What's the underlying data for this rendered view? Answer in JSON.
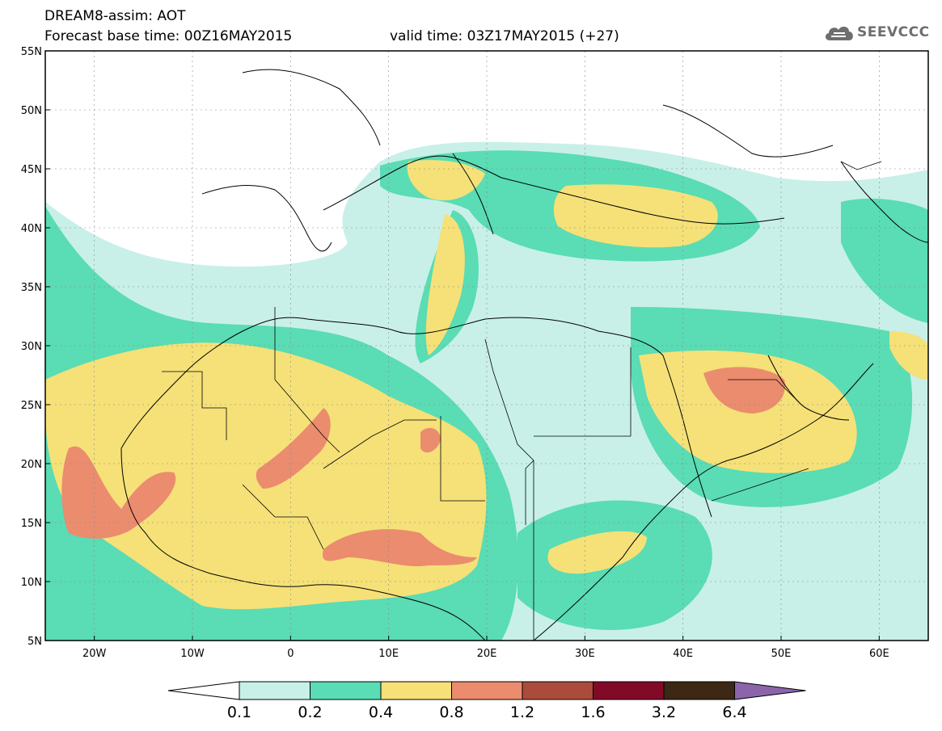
{
  "header": {
    "title": "DREAM8-assim: AOT",
    "base_time": "Forecast base time: 00Z16MAY2015",
    "valid_time": "valid time: 03Z17MAY2015 (+27)"
  },
  "logo": {
    "text": "SEEVCCC",
    "icon": "cloud-icon"
  },
  "map": {
    "lat_labels": [
      "55N",
      "50N",
      "45N",
      "40N",
      "35N",
      "30N",
      "25N",
      "20N",
      "15N",
      "10N",
      "5N"
    ],
    "lon_labels": [
      "20W",
      "10W",
      "0",
      "10E",
      "20E",
      "30E",
      "40E",
      "50E",
      "60E"
    ],
    "lon_range": [
      -25,
      65
    ],
    "lat_range": [
      5,
      55
    ],
    "grid": true
  },
  "colorbar": {
    "labels": [
      "0.1",
      "0.2",
      "0.4",
      "0.8",
      "1.2",
      "1.6",
      "3.2",
      "6.4"
    ],
    "colors": [
      "#ffffff",
      "#c8f0e8",
      "#5adcb4",
      "#f5e178",
      "#eb8c6e",
      "#aa4b3c",
      "#820a28",
      "#3c2814",
      "#8c64aa"
    ]
  }
}
